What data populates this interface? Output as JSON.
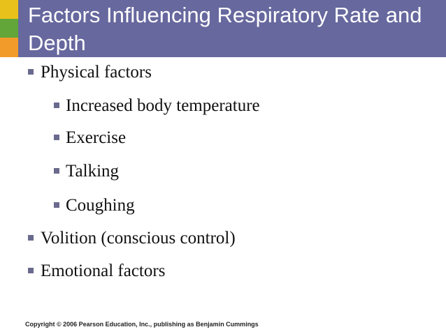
{
  "slide": {
    "title": "Factors Influencing Respiratory Rate and Depth",
    "bullets": [
      {
        "text": "Physical factors",
        "level": 1
      },
      {
        "text": "Increased body temperature",
        "level": 2
      },
      {
        "text": "Exercise",
        "level": 2
      },
      {
        "text": "Talking",
        "level": 2
      },
      {
        "text": "Coughing",
        "level": 2
      },
      {
        "text": "Volition (conscious control)",
        "level": 1
      },
      {
        "text": "Emotional factors",
        "level": 1
      }
    ],
    "footer": "Copyright © 2006 Pearson Education, Inc., publishing as Benjamin Cummings"
  },
  "colors": {
    "title_bar": "#67689e",
    "accent_yellow": "#e8c21a",
    "accent_green": "#62a63a",
    "accent_orange": "#f29b2a",
    "bullet_marker": "#6a6a8e"
  },
  "icons": {
    "bullet_marker": "square-bullet-icon"
  }
}
